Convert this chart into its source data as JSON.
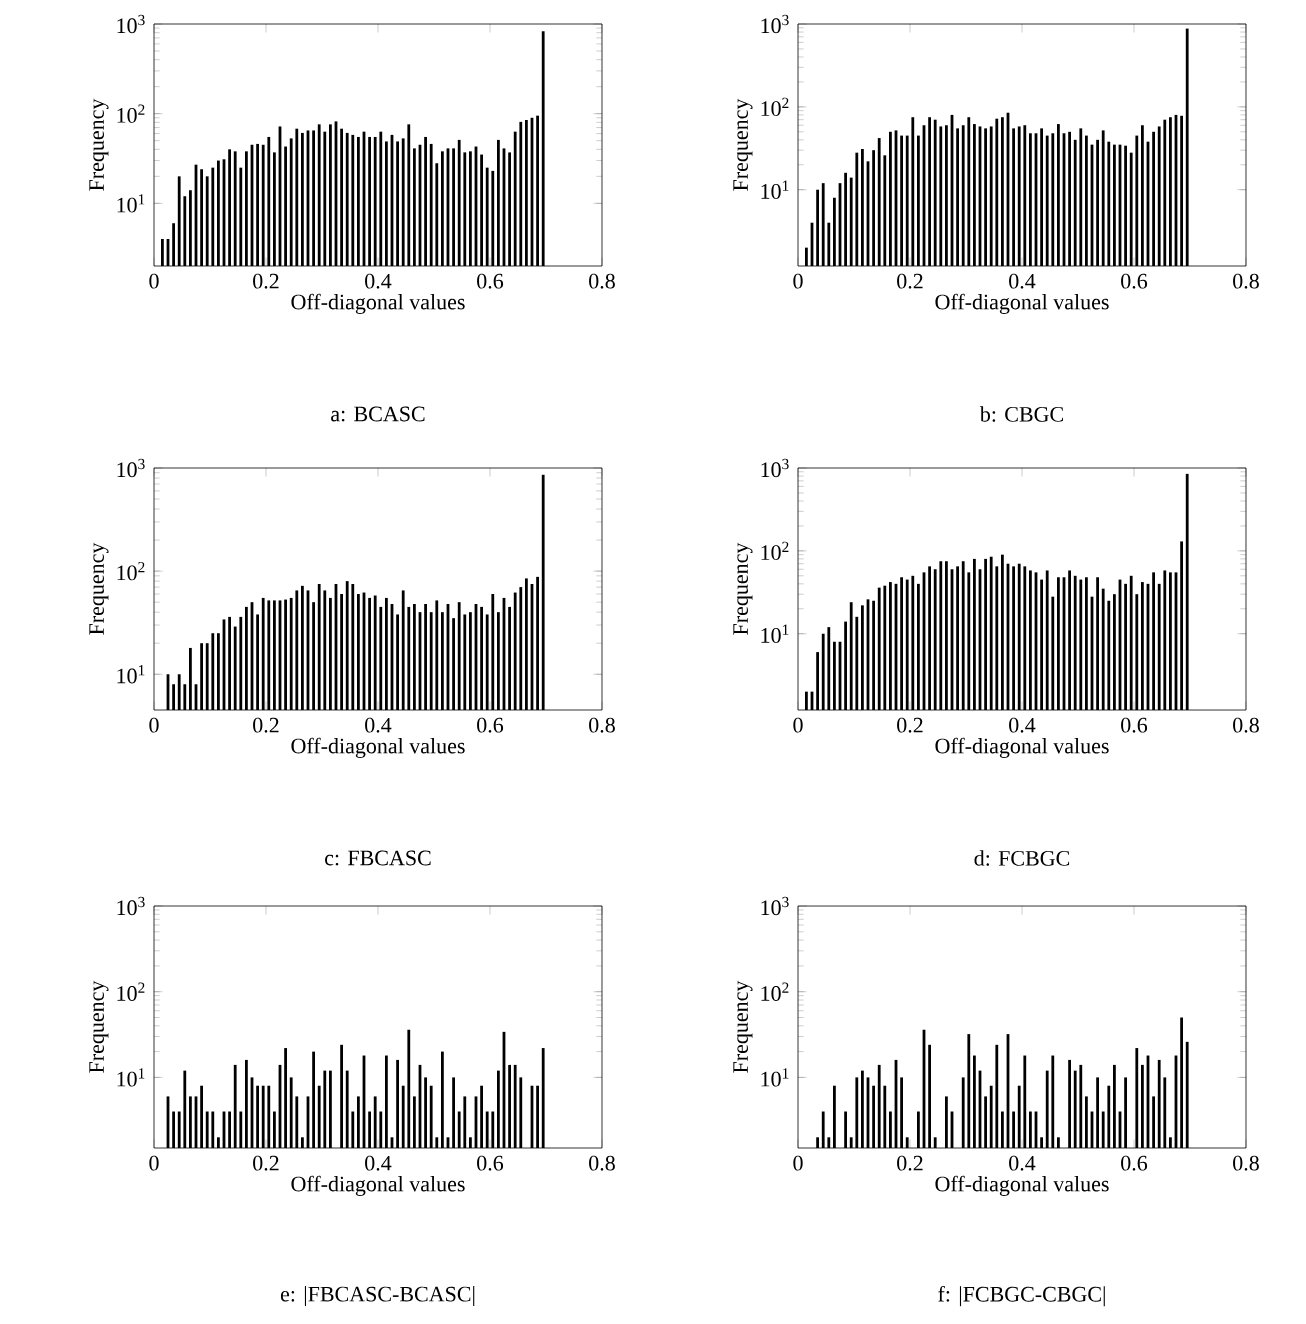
{
  "chart_data": [
    {
      "type": "histogram",
      "title": "a: BCASC",
      "xlabel": "Off-diagonal values",
      "ylabel": "Frequency",
      "color": "#000000",
      "log": "y",
      "xlim": [
        0,
        0.8
      ],
      "ylim": [
        2,
        1000
      ],
      "xticks": [
        0,
        0.2,
        0.4,
        0.6,
        0.8
      ],
      "yticks": [
        {
          "value": 10,
          "label": "10$^{1}$"
        },
        {
          "value": 100,
          "label": "10$^{2}$"
        },
        {
          "value": 1000,
          "label": "10$^{3}$"
        }
      ],
      "bins": [
        0.01,
        0.02,
        0.03,
        0.04,
        0.05,
        0.06,
        0.07,
        0.08,
        0.09,
        0.1,
        0.11,
        0.12,
        0.13,
        0.14,
        0.15,
        0.16,
        0.17,
        0.18,
        0.19,
        0.2,
        0.21,
        0.22,
        0.23,
        0.24,
        0.25,
        0.26,
        0.27,
        0.28,
        0.29,
        0.3,
        0.31,
        0.32,
        0.33,
        0.34,
        0.35,
        0.36,
        0.37,
        0.38,
        0.39,
        0.4,
        0.41,
        0.42,
        0.43,
        0.44,
        0.45,
        0.46,
        0.47,
        0.48,
        0.49,
        0.5,
        0.51,
        0.52,
        0.53,
        0.54,
        0.55,
        0.56,
        0.57,
        0.58,
        0.59,
        0.6,
        0.61,
        0.62,
        0.63,
        0.64,
        0.65,
        0.66,
        0.67,
        0.68,
        0.69,
        0.7
      ],
      "values": [
        4,
        4,
        6,
        20,
        12,
        14,
        27,
        24,
        20,
        25,
        30,
        31,
        40,
        38,
        25,
        38,
        45,
        46,
        45,
        55,
        37,
        72,
        43,
        53,
        68,
        61,
        65,
        65,
        76,
        63,
        76,
        82,
        68,
        61,
        58,
        55,
        63,
        55,
        55,
        63,
        49,
        58,
        49,
        53,
        76,
        41,
        45,
        55,
        46,
        28,
        38,
        41,
        41,
        51,
        37,
        38,
        43,
        35,
        25,
        23,
        51,
        41,
        37,
        63,
        81,
        85,
        90,
        95,
        830
      ]
    },
    {
      "type": "histogram",
      "title": "b: CBGC",
      "xlabel": "Off-diagonal values",
      "ylabel": "Frequency",
      "color": "#000000",
      "log": "y",
      "xlim": [
        0,
        0.8
      ],
      "ylim": [
        1.2,
        1000
      ],
      "xticks": [
        0,
        0.2,
        0.4,
        0.6,
        0.8
      ],
      "yticks": [
        {
          "value": 10,
          "label": "10$^{1}$"
        },
        {
          "value": 100,
          "label": "10$^{2}$"
        },
        {
          "value": 1000,
          "label": "10$^{3}$"
        }
      ],
      "bins": [
        0.01,
        0.02,
        0.03,
        0.04,
        0.05,
        0.06,
        0.07,
        0.08,
        0.09,
        0.1,
        0.11,
        0.12,
        0.13,
        0.14,
        0.15,
        0.16,
        0.17,
        0.18,
        0.19,
        0.2,
        0.21,
        0.22,
        0.23,
        0.24,
        0.25,
        0.26,
        0.27,
        0.28,
        0.29,
        0.3,
        0.31,
        0.32,
        0.33,
        0.34,
        0.35,
        0.36,
        0.37,
        0.38,
        0.39,
        0.4,
        0.41,
        0.42,
        0.43,
        0.44,
        0.45,
        0.46,
        0.47,
        0.48,
        0.49,
        0.5,
        0.51,
        0.52,
        0.53,
        0.54,
        0.55,
        0.56,
        0.57,
        0.58,
        0.59,
        0.6,
        0.61,
        0.62,
        0.63,
        0.64,
        0.65,
        0.66,
        0.67,
        0.68,
        0.69,
        0.7
      ],
      "values": [
        2,
        4,
        10,
        12,
        4,
        8,
        12,
        16,
        14,
        28,
        31,
        22,
        30,
        42,
        26,
        50,
        52,
        45,
        45,
        75,
        45,
        60,
        75,
        70,
        58,
        60,
        80,
        55,
        60,
        75,
        62,
        58,
        55,
        58,
        72,
        75,
        85,
        55,
        58,
        60,
        48,
        48,
        55,
        45,
        48,
        62,
        48,
        50,
        40,
        55,
        45,
        35,
        40,
        52,
        38,
        35,
        35,
        34,
        28,
        45,
        60,
        38,
        50,
        58,
        70,
        75,
        80,
        78,
        880
      ]
    },
    {
      "type": "histogram",
      "title": "c: FBCASC",
      "xlabel": "Off-diagonal values",
      "ylabel": "Frequency",
      "color": "#000000",
      "log": "y",
      "xlim": [
        0,
        0.8
      ],
      "ylim": [
        4.5,
        1000
      ],
      "xticks": [
        0,
        0.2,
        0.4,
        0.6,
        0.8
      ],
      "yticks": [
        {
          "value": 10,
          "label": "10$^{1}$"
        },
        {
          "value": 100,
          "label": "10$^{2}$"
        },
        {
          "value": 1000,
          "label": "10$^{3}$"
        }
      ],
      "bins": [
        0.02,
        0.03,
        0.04,
        0.05,
        0.06,
        0.07,
        0.08,
        0.09,
        0.1,
        0.11,
        0.12,
        0.13,
        0.14,
        0.15,
        0.16,
        0.17,
        0.18,
        0.19,
        0.2,
        0.21,
        0.22,
        0.23,
        0.24,
        0.25,
        0.26,
        0.27,
        0.28,
        0.29,
        0.3,
        0.31,
        0.32,
        0.33,
        0.34,
        0.35,
        0.36,
        0.37,
        0.38,
        0.39,
        0.4,
        0.41,
        0.42,
        0.43,
        0.44,
        0.45,
        0.46,
        0.47,
        0.48,
        0.49,
        0.5,
        0.51,
        0.52,
        0.53,
        0.54,
        0.55,
        0.56,
        0.57,
        0.58,
        0.59,
        0.6,
        0.61,
        0.62,
        0.63,
        0.64,
        0.65,
        0.66,
        0.67,
        0.68,
        0.69,
        0.7
      ],
      "values": [
        10,
        8,
        10,
        8,
        18,
        8,
        20,
        20,
        25,
        25,
        34,
        36,
        29,
        36,
        45,
        50,
        38,
        55,
        52,
        52,
        52,
        53,
        55,
        65,
        72,
        65,
        50,
        75,
        65,
        55,
        75,
        60,
        80,
        75,
        60,
        62,
        55,
        58,
        45,
        55,
        48,
        38,
        65,
        45,
        48,
        40,
        48,
        40,
        52,
        40,
        48,
        35,
        50,
        38,
        40,
        48,
        45,
        38,
        60,
        40,
        55,
        45,
        62,
        70,
        85,
        75,
        88,
        860
      ]
    },
    {
      "type": "histogram",
      "title": "d: FCBGC",
      "xlabel": "Off-diagonal values",
      "ylabel": "Frequency",
      "color": "#000000",
      "log": "y",
      "xlim": [
        0,
        0.8
      ],
      "ylim": [
        1.2,
        1000
      ],
      "xticks": [
        0,
        0.2,
        0.4,
        0.6,
        0.8
      ],
      "yticks": [
        {
          "value": 10,
          "label": "10$^{1}$"
        },
        {
          "value": 100,
          "label": "10$^{2}$"
        },
        {
          "value": 1000,
          "label": "10$^{3}$"
        }
      ],
      "bins": [
        0.01,
        0.02,
        0.03,
        0.04,
        0.05,
        0.06,
        0.07,
        0.08,
        0.09,
        0.1,
        0.11,
        0.12,
        0.13,
        0.14,
        0.15,
        0.16,
        0.17,
        0.18,
        0.19,
        0.2,
        0.21,
        0.22,
        0.23,
        0.24,
        0.25,
        0.26,
        0.27,
        0.28,
        0.29,
        0.3,
        0.31,
        0.32,
        0.33,
        0.34,
        0.35,
        0.36,
        0.37,
        0.38,
        0.39,
        0.4,
        0.41,
        0.42,
        0.43,
        0.44,
        0.45,
        0.46,
        0.47,
        0.48,
        0.49,
        0.5,
        0.51,
        0.52,
        0.53,
        0.54,
        0.55,
        0.56,
        0.57,
        0.58,
        0.59,
        0.6,
        0.61,
        0.62,
        0.63,
        0.64,
        0.65,
        0.66,
        0.67,
        0.68,
        0.69,
        0.7
      ],
      "values": [
        2,
        2,
        6,
        10,
        12,
        8,
        8,
        14,
        24,
        16,
        22,
        26,
        25,
        36,
        38,
        42,
        40,
        48,
        45,
        50,
        40,
        55,
        65,
        60,
        75,
        75,
        60,
        65,
        75,
        55,
        80,
        60,
        80,
        85,
        65,
        90,
        70,
        65,
        70,
        65,
        58,
        55,
        45,
        58,
        28,
        48,
        48,
        58,
        50,
        45,
        48,
        28,
        48,
        35,
        25,
        30,
        45,
        40,
        50,
        30,
        42,
        40,
        55,
        40,
        58,
        55,
        55,
        130,
        850
      ]
    },
    {
      "type": "histogram",
      "title": "e: |FBCASC-BCASC|",
      "xlabel": "Off-diagonal values",
      "ylabel": "Frequency",
      "color": "#000000",
      "log": "y",
      "xlim": [
        0,
        0.8
      ],
      "ylim": [
        1.5,
        1000
      ],
      "xticks": [
        0,
        0.2,
        0.4,
        0.6,
        0.8
      ],
      "yticks": [
        {
          "value": 10,
          "label": "10$^{1}$"
        },
        {
          "value": 100,
          "label": "10$^{2}$"
        },
        {
          "value": 1000,
          "label": "10$^{3}$"
        }
      ],
      "bins": [
        0.02,
        0.03,
        0.04,
        0.05,
        0.06,
        0.07,
        0.08,
        0.09,
        0.1,
        0.11,
        0.12,
        0.13,
        0.14,
        0.15,
        0.16,
        0.17,
        0.18,
        0.19,
        0.2,
        0.21,
        0.22,
        0.23,
        0.24,
        0.25,
        0.26,
        0.27,
        0.28,
        0.29,
        0.3,
        0.31,
        0.32,
        0.33,
        0.34,
        0.35,
        0.36,
        0.37,
        0.38,
        0.39,
        0.4,
        0.41,
        0.42,
        0.43,
        0.44,
        0.45,
        0.46,
        0.47,
        0.48,
        0.49,
        0.5,
        0.51,
        0.52,
        0.53,
        0.54,
        0.55,
        0.56,
        0.57,
        0.58,
        0.59,
        0.6,
        0.61,
        0.62,
        0.63,
        0.64,
        0.65,
        0.66,
        0.67,
        0.68,
        0.69,
        0.7
      ],
      "values": [
        6,
        4,
        4,
        12,
        6,
        6,
        8,
        4,
        4,
        2,
        4,
        4,
        14,
        4,
        16,
        10,
        8,
        8,
        8,
        4,
        14,
        22,
        10,
        6,
        2,
        6,
        20,
        8,
        12,
        12,
        null,
        24,
        12,
        4,
        6,
        18,
        4,
        6,
        4,
        18,
        2,
        16,
        8,
        36,
        6,
        14,
        10,
        8,
        2,
        20,
        2,
        10,
        4,
        6,
        2,
        6,
        8,
        4,
        4,
        12,
        34,
        14,
        14,
        10,
        null,
        8,
        8,
        22
      ]
    },
    {
      "type": "histogram",
      "title": "f: |FCBGC-CBGC|",
      "xlabel": "Off-diagonal values",
      "ylabel": "Frequency",
      "color": "#000000",
      "log": "y",
      "xlim": [
        0,
        0.8
      ],
      "ylim": [
        1.5,
        1000
      ],
      "xticks": [
        0,
        0.2,
        0.4,
        0.6,
        0.8
      ],
      "yticks": [
        {
          "value": 10,
          "label": "10$^{1}$"
        },
        {
          "value": 100,
          "label": "10$^{2}$"
        },
        {
          "value": 1000,
          "label": "10$^{3}$"
        }
      ],
      "bins": [
        0.03,
        0.04,
        0.05,
        0.06,
        0.07,
        0.08,
        0.09,
        0.1,
        0.11,
        0.12,
        0.13,
        0.14,
        0.15,
        0.16,
        0.17,
        0.18,
        0.19,
        0.2,
        0.21,
        0.22,
        0.23,
        0.24,
        0.25,
        0.26,
        0.27,
        0.28,
        0.29,
        0.3,
        0.31,
        0.32,
        0.33,
        0.34,
        0.35,
        0.36,
        0.37,
        0.38,
        0.39,
        0.4,
        0.41,
        0.42,
        0.43,
        0.44,
        0.45,
        0.46,
        0.47,
        0.48,
        0.49,
        0.5,
        0.51,
        0.52,
        0.53,
        0.54,
        0.55,
        0.56,
        0.57,
        0.58,
        0.59,
        0.6,
        0.61,
        0.62,
        0.63,
        0.64,
        0.65,
        0.66,
        0.67,
        0.68,
        0.69,
        0.7
      ],
      "values": [
        2,
        4,
        2,
        8,
        null,
        4,
        2,
        10,
        12,
        10,
        8,
        14,
        8,
        4,
        16,
        10,
        2,
        null,
        4,
        36,
        24,
        2,
        null,
        6,
        4,
        null,
        10,
        32,
        18,
        12,
        6,
        8,
        24,
        4,
        32,
        4,
        8,
        18,
        4,
        4,
        2,
        12,
        18,
        2,
        null,
        16,
        12,
        14,
        6,
        4,
        10,
        4,
        8,
        14,
        4,
        10,
        null,
        22,
        14,
        18,
        6,
        16,
        10,
        2,
        18,
        50,
        26
      ]
    }
  ]
}
